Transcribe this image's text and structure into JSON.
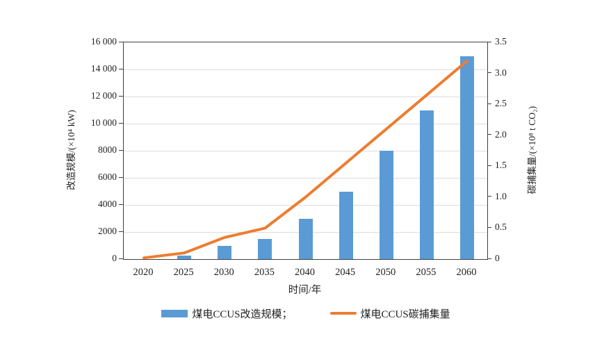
{
  "chart_data": {
    "type": "bar",
    "subtype": "bar+line dual axis",
    "categories": [
      "2020",
      "2025",
      "2030",
      "2035",
      "2040",
      "2045",
      "2050",
      "2055",
      "2060"
    ],
    "series": [
      {
        "name": "煤电CCUS改造规模",
        "type": "bar",
        "axis": "left",
        "color": "#5B9BD5",
        "values": [
          0,
          250,
          1000,
          1500,
          3000,
          5000,
          8000,
          11000,
          15000
        ]
      },
      {
        "name": "煤电CCUS碳捕集量",
        "type": "line",
        "axis": "right",
        "color": "#ED7D31",
        "values": [
          0.02,
          0.1,
          0.35,
          0.5,
          1.0,
          1.55,
          2.1,
          2.65,
          3.2
        ]
      }
    ],
    "left_axis": {
      "label": "改造规模/(×10⁴ kW)",
      "min": 0,
      "max": 16000,
      "tick_step": 2000,
      "ticks": [
        [
          0,
          "0"
        ],
        [
          2000,
          "2000"
        ],
        [
          4000,
          "4000"
        ],
        [
          6000,
          "6000"
        ],
        [
          8000,
          "8000"
        ],
        [
          10000,
          "10 000"
        ],
        [
          12000,
          "12 000"
        ],
        [
          14000,
          "14 000"
        ],
        [
          16000,
          "16 000"
        ]
      ]
    },
    "right_axis": {
      "label": "碳捕集量/(×10⁸ t CO₂)",
      "min": 0,
      "max": 3.5,
      "tick_step": 0.5,
      "ticks": [
        [
          0,
          "0"
        ],
        [
          0.5,
          "0.5"
        ],
        [
          1.0,
          "1.0"
        ],
        [
          1.5,
          "1.5"
        ],
        [
          2.0,
          "2.0"
        ],
        [
          2.5,
          "2.5"
        ],
        [
          3.0,
          "3.0"
        ],
        [
          3.5,
          "3.5"
        ]
      ]
    },
    "x_axis": {
      "label": "时间/年"
    },
    "grid": true,
    "legend": {
      "position": "bottom",
      "bar_label": "煤电CCUS改造规模；",
      "line_label": "煤电CCUS碳捕集量"
    }
  }
}
